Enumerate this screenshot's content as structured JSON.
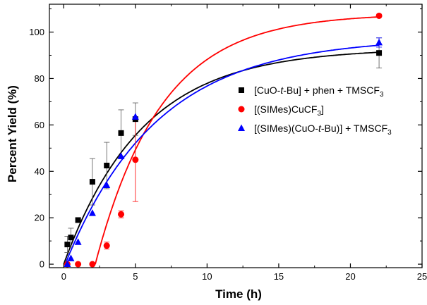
{
  "chart_data": {
    "type": "scatter",
    "title": "",
    "xlabel": "Time (h)",
    "ylabel": "Percent Yield (%)",
    "xlim": [
      -1,
      25
    ],
    "ylim": [
      -1.5,
      112
    ],
    "xticks": [
      0,
      5,
      10,
      15,
      20,
      25
    ],
    "yticks": [
      0,
      20,
      40,
      60,
      80,
      100
    ],
    "grid": false,
    "legend_position": "center-right",
    "series": [
      {
        "name": "[CuO-t-Bu] + phen + TMSCF3",
        "legend_parts": [
          "[CuO-",
          "t",
          "-Bu] + phen + TMSCF",
          "3"
        ],
        "color": "#000000",
        "marker": "square",
        "x": [
          0.25,
          0.5,
          1,
          2,
          3,
          4,
          5,
          22
        ],
        "y": [
          8.5,
          11.5,
          19,
          35.5,
          42.5,
          56.5,
          62.5,
          91
        ],
        "err": [
          3.5,
          4,
          0,
          10,
          10,
          10,
          7,
          6.5
        ],
        "fit": {
          "model": "a*(1-exp(-(x-x0)/tau))",
          "a": 93,
          "x0": 0,
          "tau": 5.5
        }
      },
      {
        "name": "[(SIMes)CuCF3]",
        "legend_parts": [
          "[(SIMes)CuCF",
          "3",
          "]"
        ],
        "color": "#ff0000",
        "marker": "circle",
        "x": [
          0.25,
          1,
          2,
          3,
          4,
          5,
          22
        ],
        "y": [
          0,
          0,
          0,
          8,
          21.5,
          45,
          107
        ],
        "err": [
          0,
          0,
          0,
          1.5,
          1.5,
          18,
          0
        ],
        "fit": {
          "model": "a*(1-exp(-(x-x0)/tau))",
          "a": 108,
          "x0": 2.2,
          "tau": 4.6
        }
      },
      {
        "name": "[(SIMes)(CuO-t-Bu)] + TMSCF3",
        "legend_parts": [
          "[(SIMes)(CuO-",
          "t",
          "-Bu)] + TMSCF",
          "3"
        ],
        "color": "#0000ff",
        "marker": "triangle",
        "x": [
          0.25,
          0.5,
          1,
          2,
          3,
          4,
          5,
          22
        ],
        "y": [
          0,
          2.5,
          9.5,
          22,
          34,
          46.5,
          63.5,
          95.5
        ],
        "err": [
          0,
          0,
          0,
          0,
          0,
          0,
          0,
          2
        ],
        "fit": {
          "model": "a*(1-exp(-(x-x0)/tau))",
          "a": 97.5,
          "x0": 0.1,
          "tau": 6.4
        }
      }
    ]
  }
}
